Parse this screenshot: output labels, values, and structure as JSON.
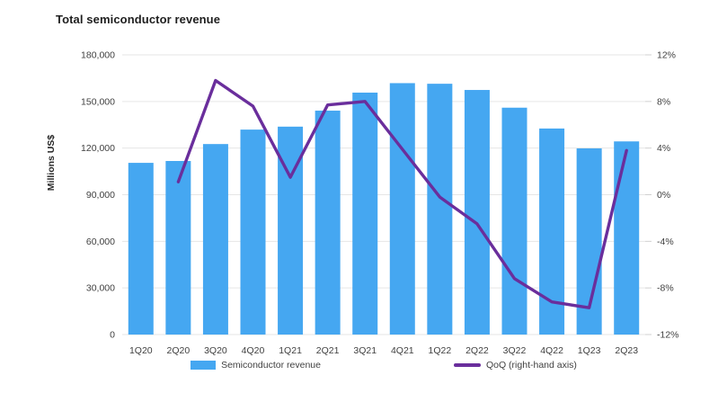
{
  "title": "Total semiconductor revenue",
  "y_axis_label": "Millions US$",
  "colors": {
    "bar": "#45a7f1",
    "line": "#6a2e9c",
    "grid": "#e6e6e6",
    "tick": "#d0d0d0",
    "axis_text": "#404040",
    "title_text": "#1f1f1f"
  },
  "legend": {
    "revenue_label": "Semiconductor revenue",
    "qoq_label": "QoQ (right-hand axis)"
  },
  "chart_data": {
    "type": "bar",
    "subtype": "combo bar + line, dual axis",
    "title": "Total semiconductor revenue",
    "categories": [
      "1Q20",
      "2Q20",
      "3Q20",
      "4Q20",
      "1Q21",
      "2Q21",
      "3Q21",
      "4Q21",
      "1Q22",
      "2Q22",
      "3Q22",
      "4Q22",
      "1Q23",
      "2Q23"
    ],
    "series": [
      {
        "name": "Semiconductor revenue",
        "type": "bar",
        "axis": "left",
        "values": [
          110500,
          111700,
          122600,
          131900,
          133800,
          144100,
          155700,
          161800,
          161400,
          157400,
          146000,
          132600,
          119800,
          124300
        ]
      },
      {
        "name": "QoQ (right-hand axis)",
        "type": "line",
        "axis": "right",
        "values": [
          null,
          1.1,
          9.8,
          7.6,
          1.5,
          7.7,
          8.0,
          3.9,
          -0.2,
          -2.5,
          -7.2,
          -9.2,
          -9.7,
          3.8
        ]
      }
    ],
    "left_axis": {
      "label": "Millions US$",
      "min": 0,
      "max": 180000,
      "step": 30000,
      "tick_format": "thousands-comma"
    },
    "right_axis": {
      "min": -12,
      "max": 12,
      "step": 4,
      "tick_format": "percent"
    },
    "grid": "horizontal only",
    "legend_position": "bottom"
  }
}
